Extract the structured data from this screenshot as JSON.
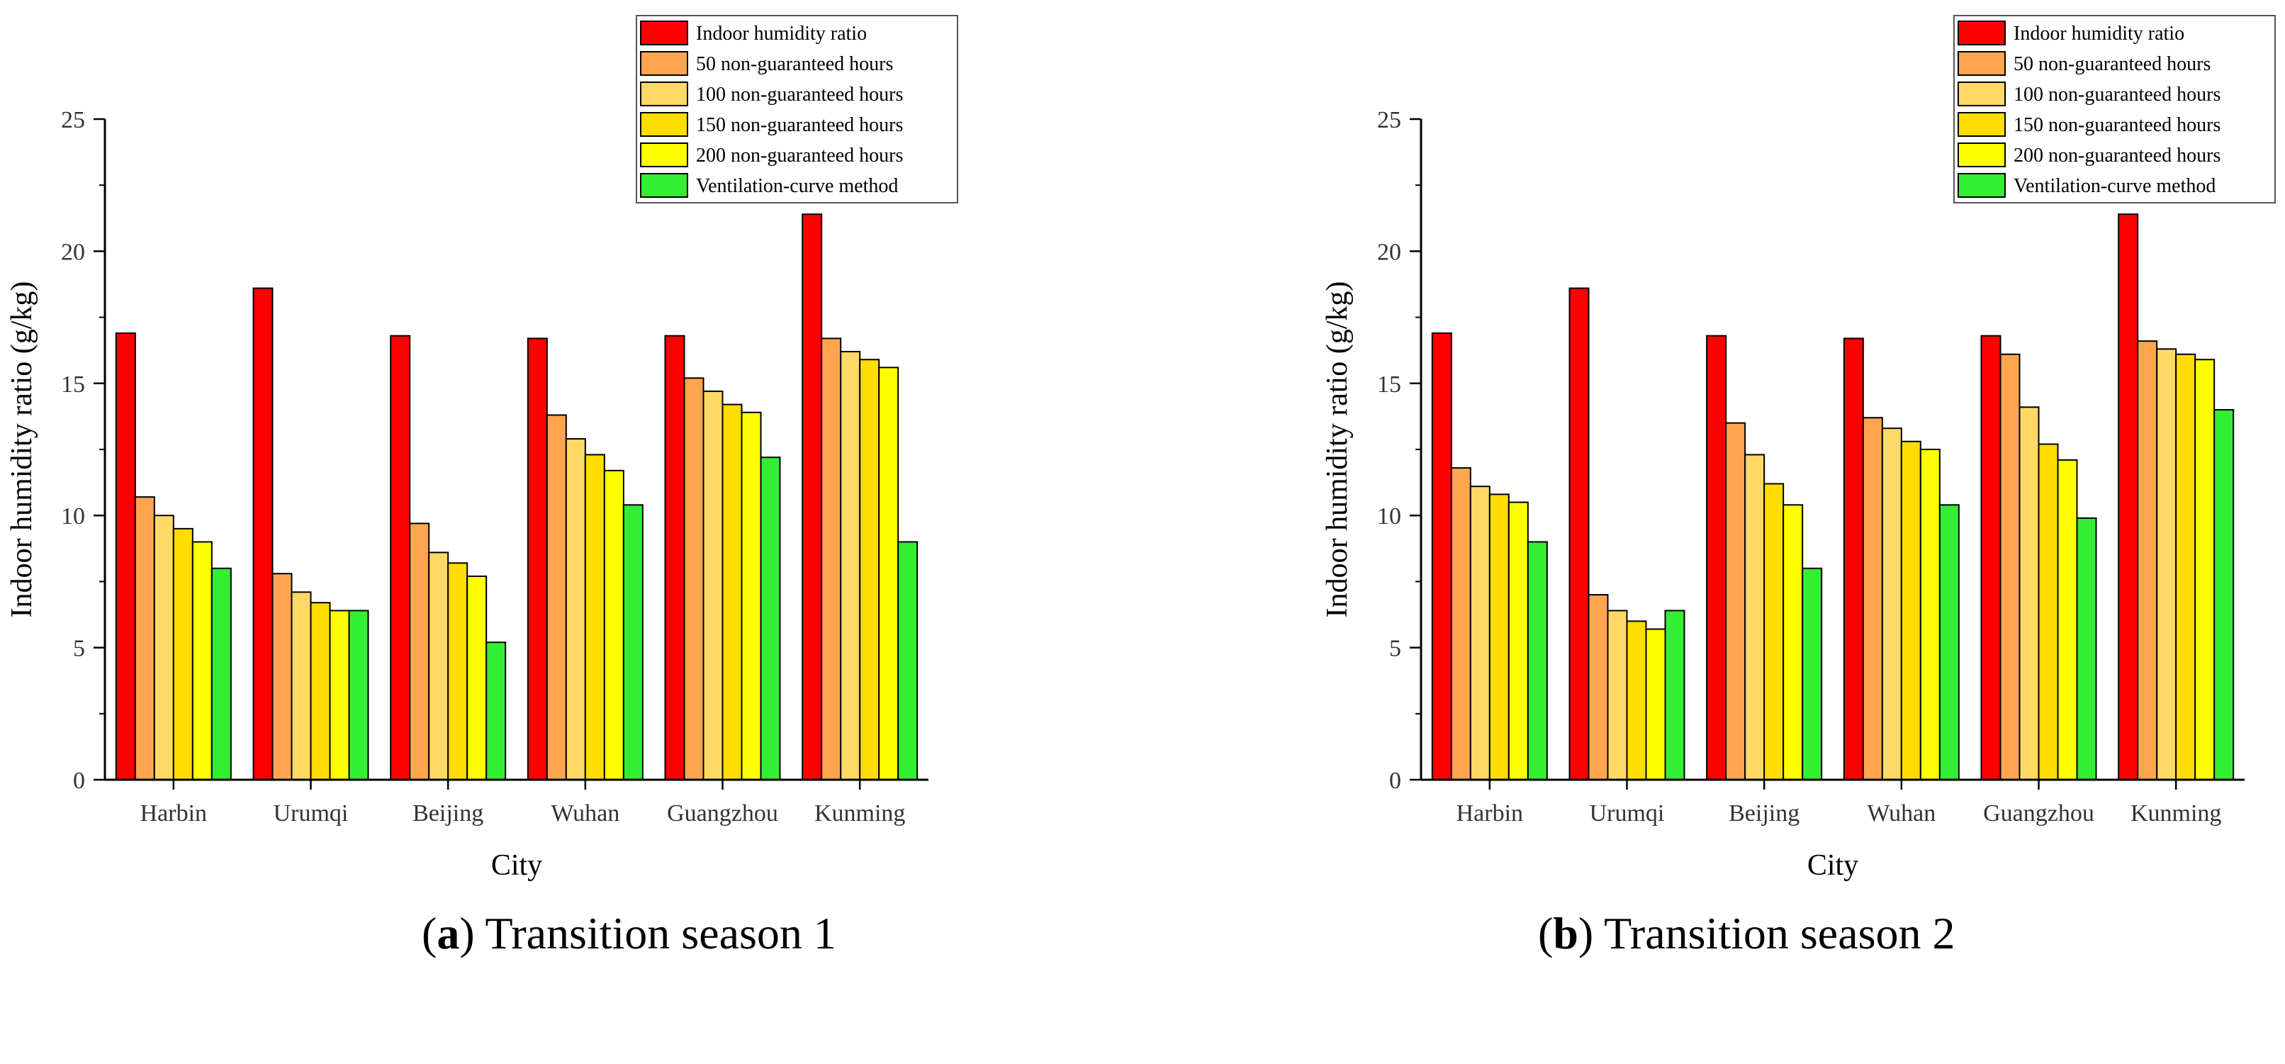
{
  "colors": {
    "series": [
      "#ff0000",
      "#ffa550",
      "#ffd966",
      "#ffdd00",
      "#ffff00",
      "#33ee33"
    ],
    "axis": "#000000"
  },
  "captions": [
    {
      "letter": "a",
      "text": "Transition season 1"
    },
    {
      "letter": "b",
      "text": "Transition season 2"
    }
  ],
  "chart_data": [
    {
      "type": "bar",
      "title": "Transition season 1",
      "xlabel": "City",
      "ylabel": "Indoor humidity ratio (g/kg)",
      "ylim": [
        0,
        25
      ],
      "yticks": [
        0,
        5,
        10,
        15,
        20,
        25
      ],
      "legend_position": "top-right",
      "categories": [
        "Harbin",
        "Urumqi",
        "Beijing",
        "Wuhan",
        "Guangzhou",
        "Kunming"
      ],
      "series": [
        {
          "name": "Indoor humidity ratio",
          "values": [
            16.9,
            18.6,
            16.8,
            16.7,
            16.8,
            21.4
          ]
        },
        {
          "name": "50 non-guaranteed hours",
          "values": [
            10.7,
            7.8,
            9.7,
            13.8,
            15.2,
            16.7
          ]
        },
        {
          "name": "100 non-guaranteed hours",
          "values": [
            10.0,
            7.1,
            8.6,
            12.9,
            14.7,
            16.2
          ]
        },
        {
          "name": "150 non-guaranteed hours",
          "values": [
            9.5,
            6.7,
            8.2,
            12.3,
            14.2,
            15.9
          ]
        },
        {
          "name": "200 non-guaranteed hours",
          "values": [
            9.0,
            6.4,
            7.7,
            11.7,
            13.9,
            15.6
          ]
        },
        {
          "name": "Ventilation-curve method",
          "values": [
            8.0,
            6.4,
            5.2,
            10.4,
            12.2,
            9.0
          ]
        }
      ]
    },
    {
      "type": "bar",
      "title": "Transition season 2",
      "xlabel": "City",
      "ylabel": "Indoor humidity ratio (g/kg)",
      "ylim": [
        0,
        25
      ],
      "yticks": [
        0,
        5,
        10,
        15,
        20,
        25
      ],
      "legend_position": "top-right",
      "categories": [
        "Harbin",
        "Urumqi",
        "Beijing",
        "Wuhan",
        "Guangzhou",
        "Kunming"
      ],
      "series": [
        {
          "name": "Indoor humidity ratio",
          "values": [
            16.9,
            18.6,
            16.8,
            16.7,
            16.8,
            21.4
          ]
        },
        {
          "name": "50 non-guaranteed hours",
          "values": [
            11.8,
            7.0,
            13.5,
            13.7,
            16.1,
            16.6
          ]
        },
        {
          "name": "100 non-guaranteed hours",
          "values": [
            11.1,
            6.4,
            12.3,
            13.3,
            14.1,
            16.3
          ]
        },
        {
          "name": "150 non-guaranteed hours",
          "values": [
            10.8,
            6.0,
            11.2,
            12.8,
            12.7,
            16.1
          ]
        },
        {
          "name": "200 non-guaranteed hours",
          "values": [
            10.5,
            5.7,
            10.4,
            12.5,
            12.1,
            15.9
          ]
        },
        {
          "name": "Ventilation-curve method",
          "values": [
            9.0,
            6.4,
            8.0,
            10.4,
            9.9,
            14.0
          ]
        }
      ]
    }
  ]
}
